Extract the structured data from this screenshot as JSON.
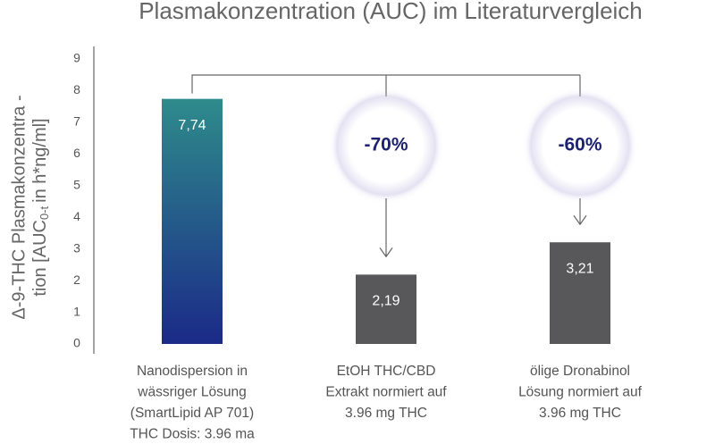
{
  "chart_data": {
    "type": "bar",
    "title": "Plasmakonzentration (AUC) im Literaturvergleich",
    "ylabel": [
      "Δ-9-THC Plasmakonzentra -",
      "tion [AUC",
      "0-t",
      "in h*ng/ml]"
    ],
    "categories": [
      [
        "Nanodispersion in",
        "wässriger Lösung",
        "(SmartLipid AP 701)",
        "THC Dosis: 3.96 ma"
      ],
      [
        "EtOH THC/CBD",
        "Extrakt normiert auf",
        "3.96 mg THC"
      ],
      [
        "ölige Dronabinol",
        "Lösung normiert auf",
        "3.96 mg THC"
      ]
    ],
    "values": [
      7.74,
      2.19,
      3.21
    ],
    "value_labels": [
      "7,74",
      "2,19",
      "3,21"
    ],
    "colors": [
      "#2e8b8b",
      "#58585a",
      "#58585a"
    ],
    "gradient_bottom": "#1b2a88",
    "annotations": [
      null,
      "-70%",
      "-60%"
    ],
    "ylim": [
      0,
      9
    ],
    "yticks": [
      0,
      1,
      2,
      3,
      4,
      5,
      6,
      7,
      8,
      9
    ],
    "grid": false
  }
}
